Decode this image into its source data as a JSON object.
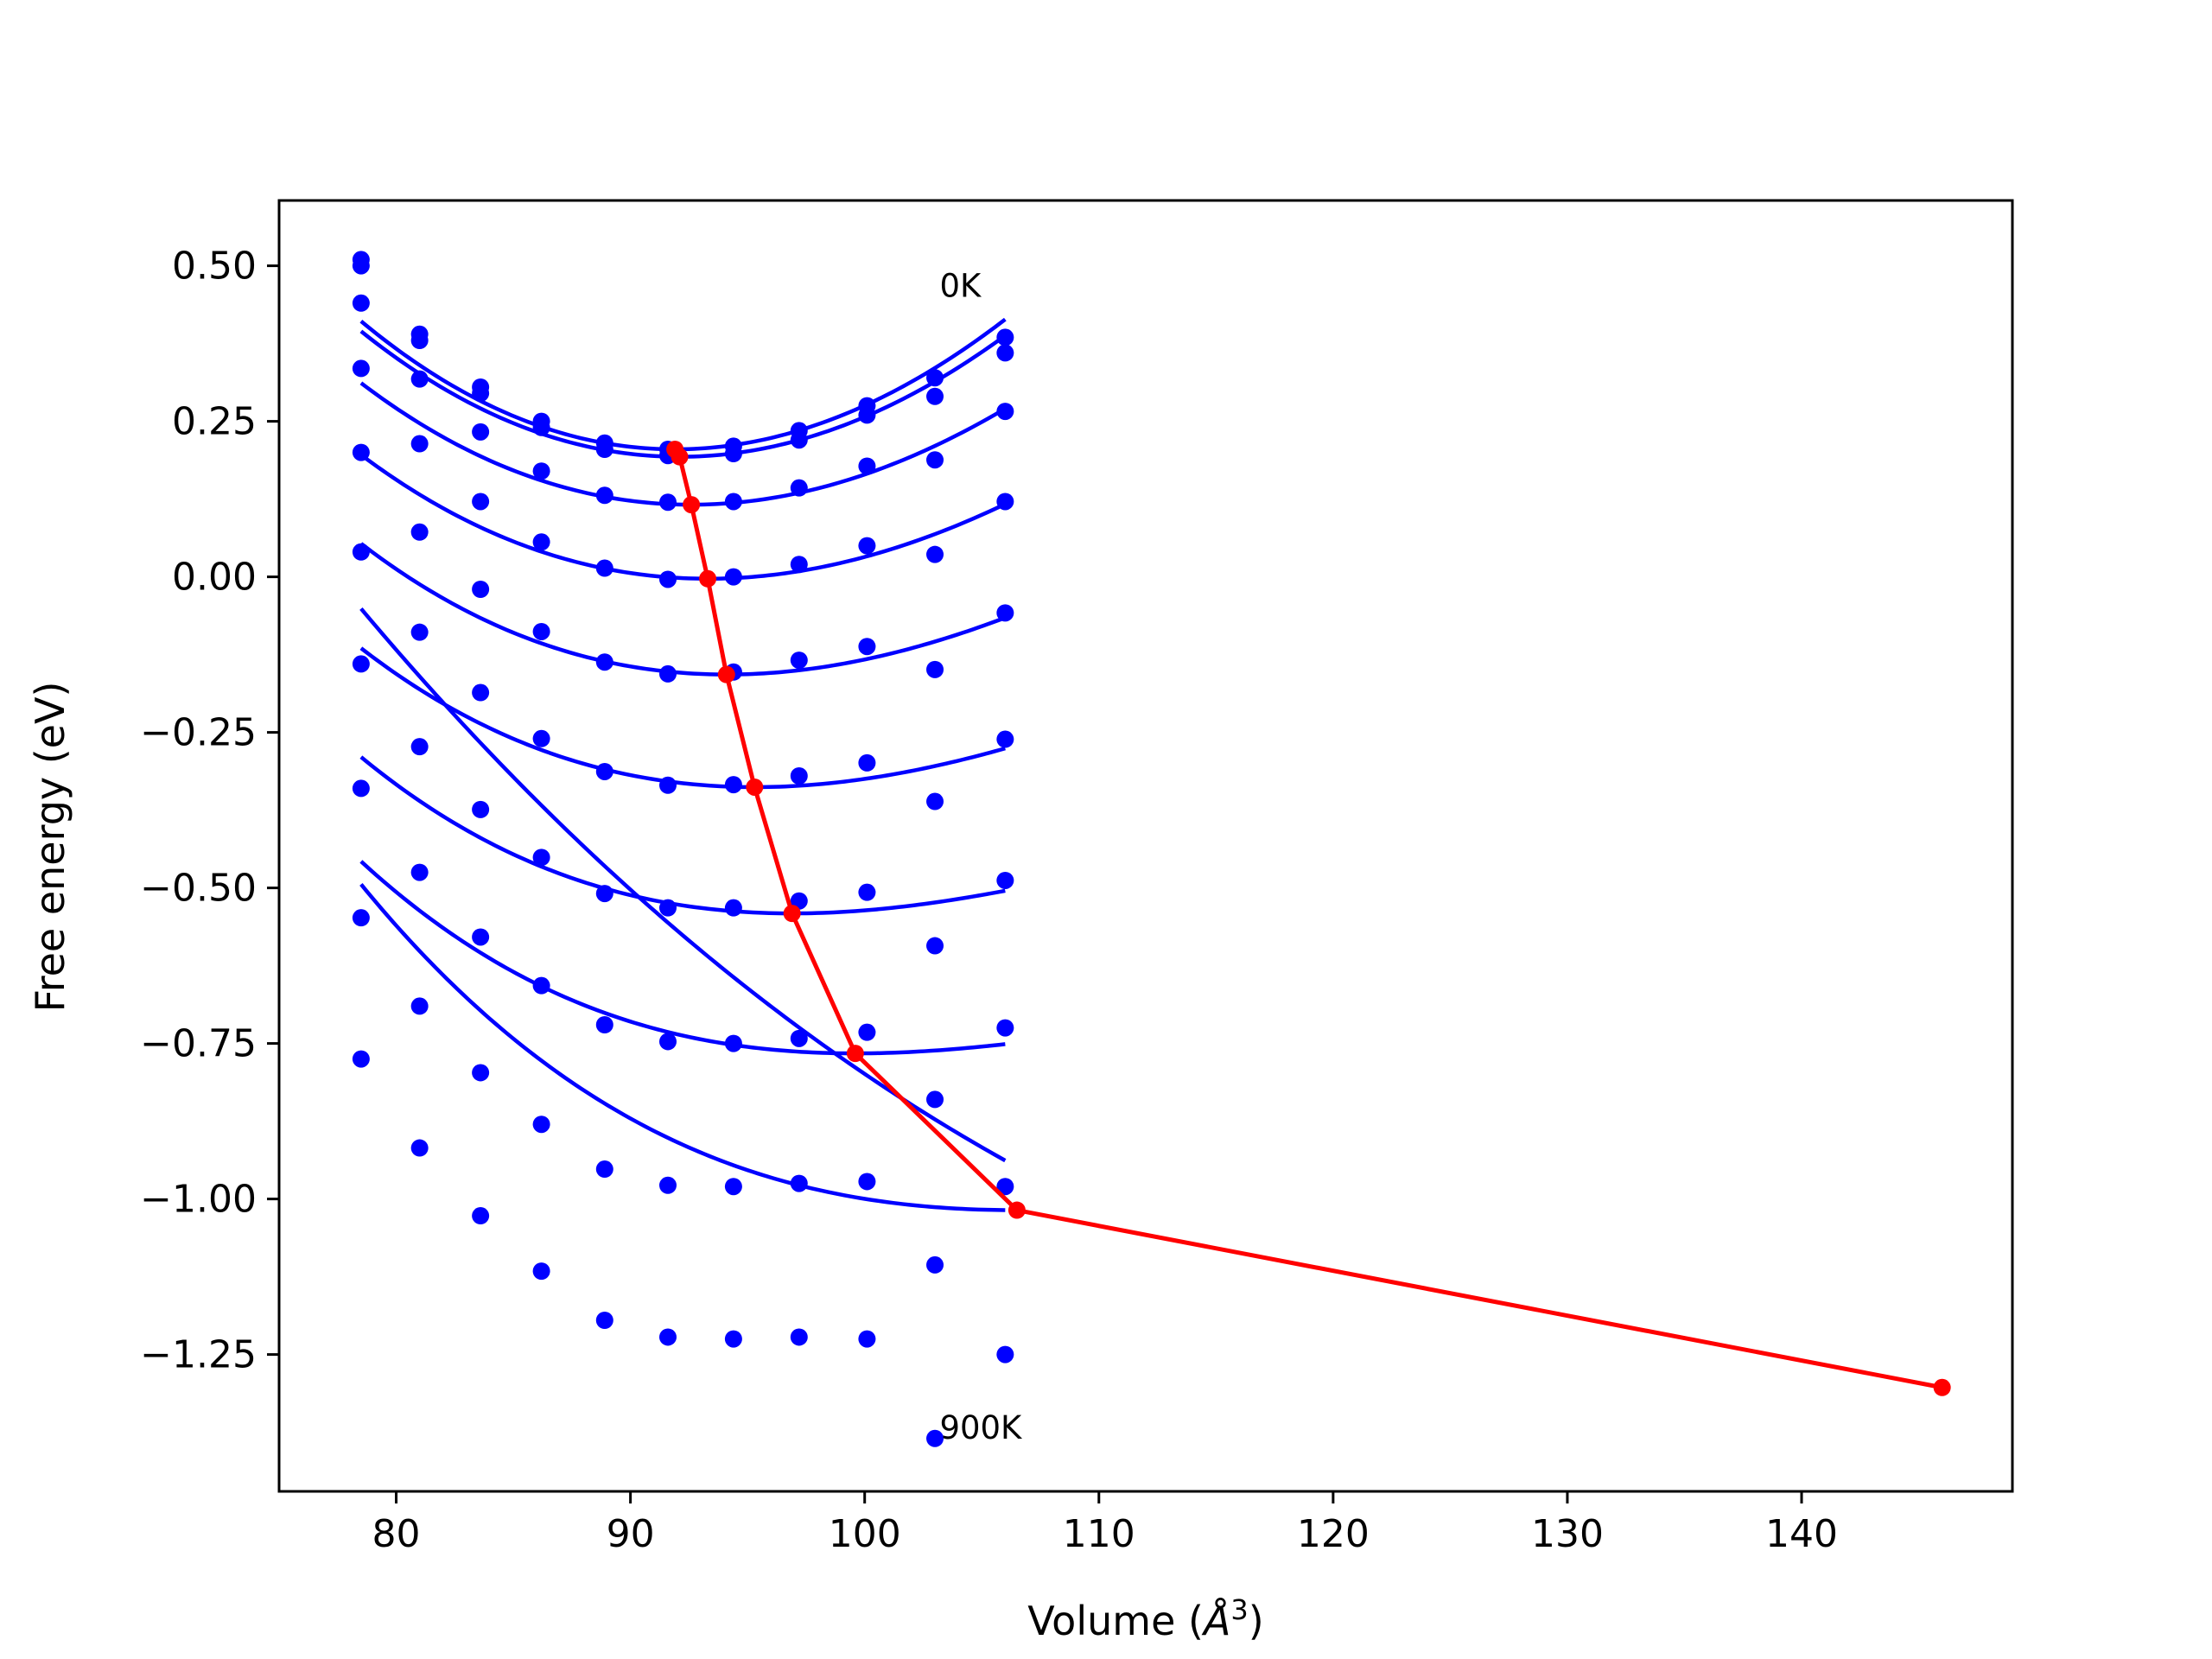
{
  "chart_data": {
    "type": "scatter",
    "title": "",
    "xlabel": "Volume (",
    "xlabel_unit": "Å",
    "xlabel_exponent": "3",
    "xlabel_suffix": ")",
    "ylabel": "Free energy (eV)",
    "xlim": [
      75,
      149
    ],
    "ylim": [
      -1.47,
      0.605
    ],
    "xticks": [
      80,
      90,
      100,
      110,
      120,
      130,
      140
    ],
    "xtick_labels": [
      "80",
      "90",
      "100",
      "110",
      "120",
      "130",
      "140"
    ],
    "yticks": [
      0.5,
      0.25,
      0.0,
      -0.25,
      -0.5,
      -0.75,
      -1.0,
      -1.25
    ],
    "ytick_labels": [
      "0.50",
      "0.25",
      "0.00",
      "−0.25",
      "−0.50",
      "−0.75",
      "−1.00",
      "−1.25"
    ],
    "grid": false,
    "colors": {
      "points": "#0000ff",
      "fits": "#0000ff",
      "minima": "#ff0000"
    },
    "annotations": [
      {
        "text": "0K",
        "x": 103.2,
        "y": 0.45
      },
      {
        "text": "900K",
        "x": 103.2,
        "y": -1.385
      }
    ],
    "volumes": [
      78.5,
      81.0,
      83.6,
      86.2,
      88.9,
      91.6,
      94.4,
      97.2,
      100.1,
      103.0,
      106.0
    ],
    "series": [
      {
        "temperature": "0K",
        "y": [
          0.51,
          0.39,
          0.305,
          0.25,
          0.215,
          0.205,
          0.21,
          0.235,
          0.275,
          0.32,
          0.385
        ],
        "fit": {
          "v0": 91.9,
          "e0": 0.205,
          "a": 0.0011,
          "b": 3.5e-06
        }
      },
      {
        "y": [
          0.5,
          0.38,
          0.295,
          0.24,
          0.205,
          0.195,
          0.198,
          0.22,
          0.26,
          0.29,
          0.36
        ],
        "fit": {
          "v0": 92.1,
          "e0": 0.193,
          "a": 0.00105,
          "b": 3e-06
        }
      },
      {
        "y": [
          0.44,
          0.318,
          0.233,
          0.17,
          0.131,
          0.12,
          0.121,
          0.143,
          0.178,
          0.188,
          0.266
        ],
        "fit": {
          "v0": 92.6,
          "e0": 0.116,
          "a": 0.00092,
          "b": 4.5e-06
        }
      },
      {
        "y": [
          0.335,
          0.214,
          0.121,
          0.056,
          0.014,
          -0.004,
          0.0,
          0.02,
          0.05,
          0.036,
          0.121
        ],
        "fit": {
          "v0": 93.3,
          "e0": -0.003,
          "a": 0.00082,
          "b": 6e-06
        }
      },
      {
        "y": [
          0.2,
          0.072,
          -0.02,
          -0.088,
          -0.137,
          -0.156,
          -0.153,
          -0.134,
          -0.112,
          -0.149,
          -0.058
        ],
        "fit": {
          "v0": 94.1,
          "e0": -0.157,
          "a": 0.00074,
          "b": 8e-06
        }
      },
      {
        "y": [
          0.04,
          -0.089,
          -0.186,
          -0.26,
          -0.313,
          -0.335,
          -0.334,
          -0.32,
          -0.299,
          -0.361,
          -0.261
        ],
        "fit": {
          "v0": 95.3,
          "e0": -0.338,
          "a": 0.00064,
          "b": 9e-06
        }
      },
      {
        "y": [
          -0.14,
          -0.273,
          -0.374,
          -0.451,
          -0.509,
          -0.532,
          -0.532,
          -0.521,
          -0.507,
          -0.593,
          -0.488
        ],
        "fit": {
          "v0": 96.9,
          "e0": -0.541,
          "a": 0.00054,
          "b": 1.1e-05
        }
      },
      {
        "y": [
          -0.34,
          -0.475,
          -0.579,
          -0.657,
          -0.72,
          -0.747,
          -0.75,
          -0.742,
          -0.732,
          -0.84,
          -0.725
        ],
        "fit": {
          "v0": 99.6,
          "e0": -0.766,
          "a": 0.00044,
          "b": 1.2e-05
        }
      },
      {
        "y": [
          -0.548,
          -0.69,
          -0.797,
          -0.88,
          -0.952,
          -0.978,
          -0.98,
          -0.975,
          -0.972,
          -1.106,
          -0.98
        ],
        "fit": {
          "v0": 106.5,
          "e0": -1.018,
          "a": 0.00036,
          "b": 1.1e-05
        }
      },
      {
        "temperature": "900K",
        "y": [
          -0.775,
          -0.918,
          -1.027,
          -1.116,
          -1.195,
          -1.222,
          -1.225,
          -1.222,
          -1.225,
          -1.385,
          -1.25
        ],
        "fit": {
          "v0": 146.0,
          "e0": -1.303,
          "a": 0.00016,
          "b": 1.7e-06
        }
      }
    ],
    "minima": {
      "x": [
        91.9,
        92.1,
        92.6,
        93.3,
        94.1,
        95.3,
        96.9,
        99.6,
        106.5,
        146.0
      ],
      "y": [
        0.205,
        0.193,
        0.116,
        -0.003,
        -0.157,
        -0.338,
        -0.541,
        -0.766,
        -1.018,
        -1.303
      ]
    }
  }
}
